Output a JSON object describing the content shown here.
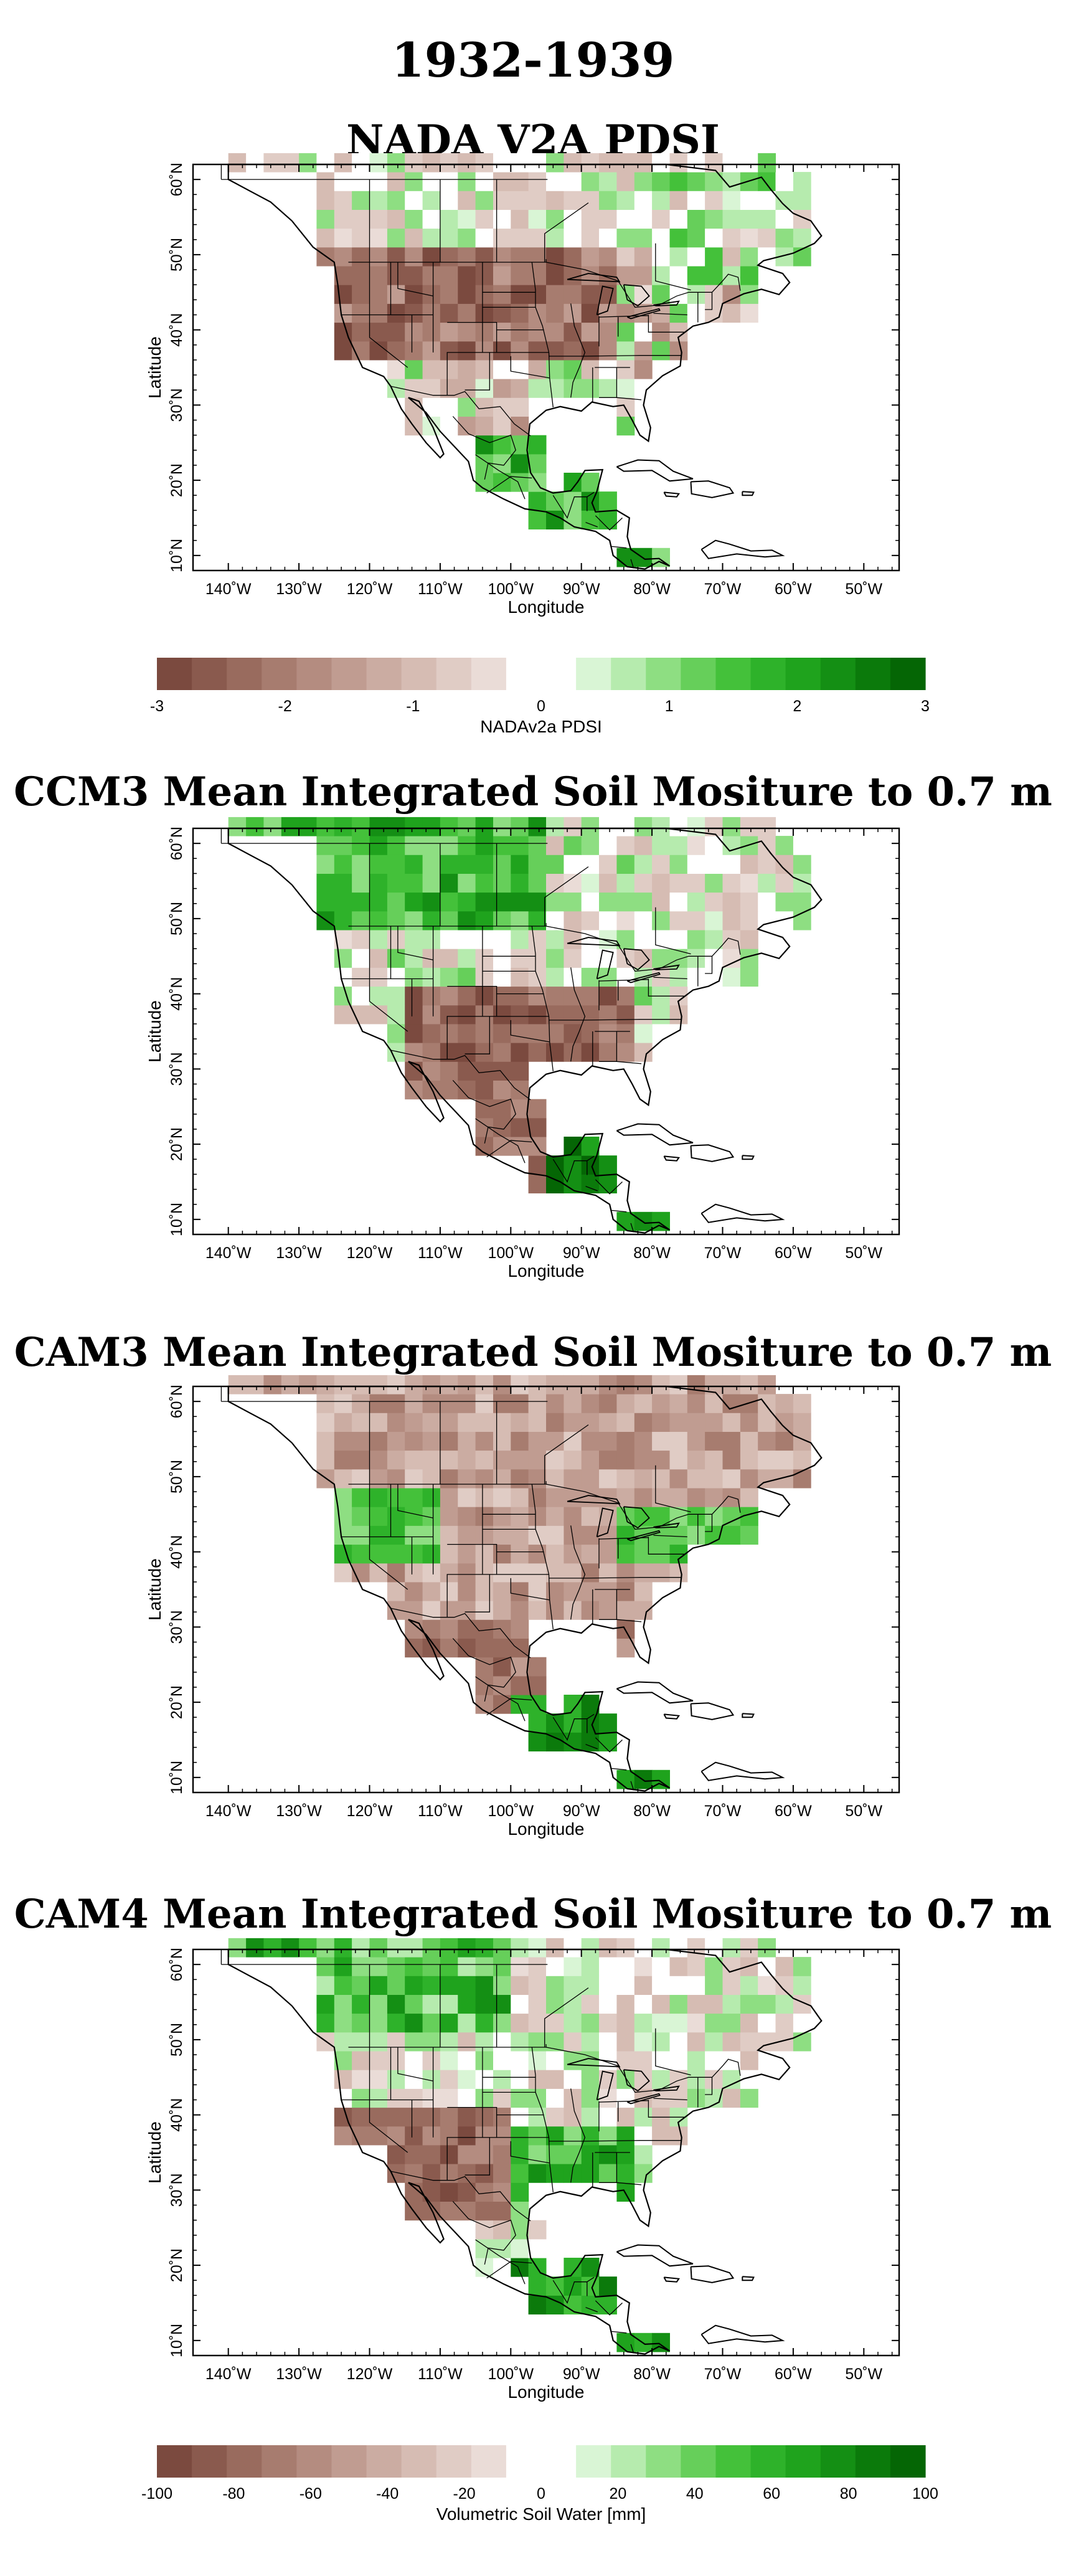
{
  "main_title": "1932-1939",
  "panels": [
    {
      "title": "NADA V2A PDSI",
      "ylabel": "Latitude",
      "xlabel": "Longitude"
    },
    {
      "title": "CCM3 Mean Integrated Soil Mositure to 0.7 m",
      "ylabel": "Latitude",
      "xlabel": "Longitude"
    },
    {
      "title": "CAM3 Mean Integrated Soil Mositure to 0.7 m",
      "ylabel": "Latitude",
      "xlabel": "Longitude"
    },
    {
      "title": "CAM4 Mean Integrated Soil Mositure to 0.7 m",
      "ylabel": "Latitude",
      "xlabel": "Longitude"
    }
  ],
  "x_ticks": [
    "140˚W",
    "130˚W",
    "120˚W",
    "110˚W",
    "100˚W",
    "90˚W",
    "80˚W",
    "70˚W",
    "60˚W",
    "50˚W"
  ],
  "y_ticks": [
    "10˚N",
    "20˚N",
    "30˚N",
    "40˚N",
    "50˚N",
    "60˚N"
  ],
  "colorbar_pdsi": {
    "title": "NADAv2a PDSI",
    "labels": [
      "-3",
      "-2",
      "-1",
      "0",
      "1",
      "2",
      "3"
    ],
    "range": [
      -3,
      3
    ]
  },
  "colorbar_soil": {
    "title": "Volumetric Soil Water [mm]",
    "labels": [
      "-100",
      "-80",
      "-60",
      "-40",
      "-20",
      "0",
      "20",
      "40",
      "60",
      "80",
      "100"
    ],
    "range": [
      -100,
      100
    ]
  },
  "colors": {
    "brown_scale": [
      "#7b4a3f",
      "#8a5a4e",
      "#996b5e",
      "#a77c6f",
      "#b48c80",
      "#c09c91",
      "#cbaca2",
      "#d6bcb3",
      "#e0ccc5",
      "#eadcd7"
    ],
    "green_scale": [
      "#d9f5d5",
      "#b6ebae",
      "#8ede82",
      "#66cf5a",
      "#44c13a",
      "#2eb22a",
      "#1fa31d",
      "#148f14",
      "#0b7a0b",
      "#056605"
    ],
    "neutral": "#ffffff",
    "land_outline": "#000000"
  }
}
